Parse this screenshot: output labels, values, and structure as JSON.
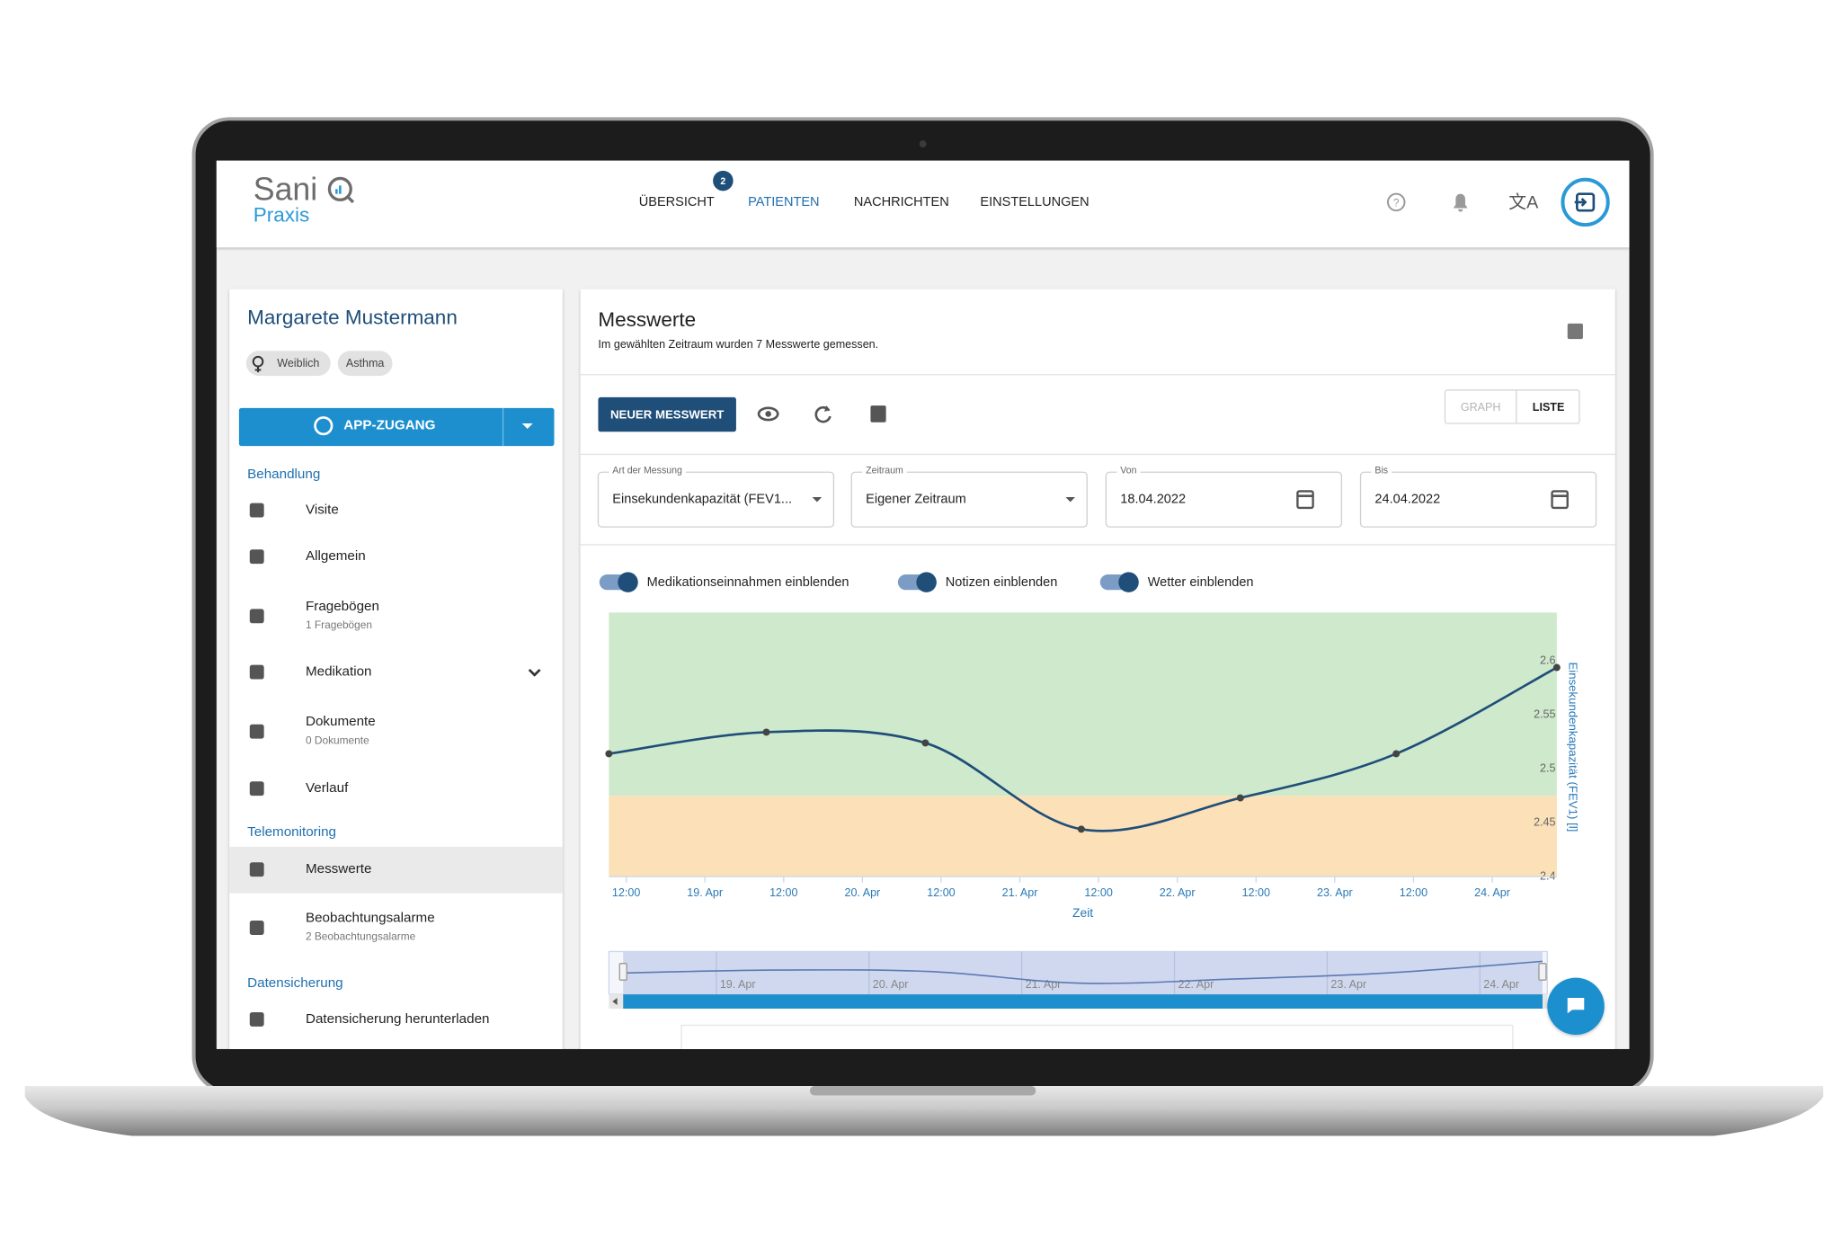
{
  "header": {
    "logo": {
      "name": "Sani",
      "product": "Praxis"
    },
    "nav": [
      {
        "label": "ÜBERSICHT",
        "badge": 2
      },
      {
        "label": "PATIENTEN",
        "active": true
      },
      {
        "label": "NACHRICHTEN"
      },
      {
        "label": "EINSTELLUNGEN"
      }
    ]
  },
  "patient": {
    "name": "Margarete Mustermann",
    "tags": [
      "Weiblich",
      "Asthma"
    ],
    "app_button": "APP-ZUGANG"
  },
  "sidebar": {
    "sections": [
      {
        "title": "Behandlung",
        "items": [
          {
            "label": "Visite"
          },
          {
            "label": "Allgemein"
          },
          {
            "label": "Fragebögen",
            "sub": "1 Fragebögen"
          },
          {
            "label": "Medikation",
            "expandable": true
          },
          {
            "label": "Dokumente",
            "sub": "0 Dokumente"
          },
          {
            "label": "Verlauf"
          }
        ]
      },
      {
        "title": "Telemonitoring",
        "items": [
          {
            "label": "Messwerte",
            "selected": true
          },
          {
            "label": "Beobachtungsalarme",
            "sub": "2 Beobachtungsalarme"
          }
        ]
      },
      {
        "title": "Datensicherung",
        "items": [
          {
            "label": "Datensicherung herunterladen"
          }
        ]
      }
    ]
  },
  "panel": {
    "title": "Messwerte",
    "subtitle": "Im gewählten Zeitraum wurden 7 Messwerte gemessen.",
    "new_button": "NEUER MESSWERT",
    "view_toggle": [
      "GRAPH",
      "LISTE"
    ],
    "filters": [
      {
        "label": "Art der Messung",
        "value": "Einsekundenkapazität (FEV1...",
        "kind": "select"
      },
      {
        "label": "Zeitraum",
        "value": "Eigener Zeitraum",
        "kind": "select"
      },
      {
        "label": "Von",
        "value": "18.04.2022",
        "kind": "date"
      },
      {
        "label": "Bis",
        "value": "24.04.2022",
        "kind": "date"
      }
    ],
    "switches": [
      {
        "label": "Medikationseinnahmen einblenden",
        "on": true
      },
      {
        "label": "Notizen einblenden",
        "on": true
      },
      {
        "label": "Wetter einblenden",
        "on": true
      }
    ]
  },
  "chart_data": {
    "type": "line",
    "x_label": "Zeit",
    "y_label": "Einsekundenkapazität (FEV1) [l]",
    "x": [
      18.39,
      19.39,
      20.4,
      21.39,
      22.4,
      23.39,
      24.41
    ],
    "series": [
      {
        "name": "Einsekundenkapazität (FEV1)",
        "color": "#1f4e79",
        "values": [
          2.514,
          2.534,
          2.524,
          2.444,
          2.473,
          2.514,
          2.594
        ]
      }
    ],
    "xlim": [
      18.39,
      24.41
    ],
    "xticks": [
      {
        "value": 18.5,
        "label": "12:00"
      },
      {
        "value": 19,
        "label": "19. Apr"
      },
      {
        "value": 19.5,
        "label": "12:00"
      },
      {
        "value": 20,
        "label": "20. Apr"
      },
      {
        "value": 20.5,
        "label": "12:00"
      },
      {
        "value": 21,
        "label": "21. Apr"
      },
      {
        "value": 21.5,
        "label": "12:00"
      },
      {
        "value": 22,
        "label": "22. Apr"
      },
      {
        "value": 22.5,
        "label": "12:00"
      },
      {
        "value": 23,
        "label": "23. Apr"
      },
      {
        "value": 23.5,
        "label": "12:00"
      },
      {
        "value": 24,
        "label": "24. Apr"
      }
    ],
    "ylim": [
      2.4,
      2.645
    ],
    "yticks": [
      2.4,
      2.45,
      2.5,
      2.55,
      2.6
    ],
    "y_axis_side": "right",
    "grid": false,
    "bands": [
      {
        "from": 2.4,
        "to": 2.475,
        "color": "#fbe0b8"
      },
      {
        "from": 2.475,
        "to": 2.645,
        "color": "#cfe9cd"
      }
    ],
    "navigator": true
  }
}
